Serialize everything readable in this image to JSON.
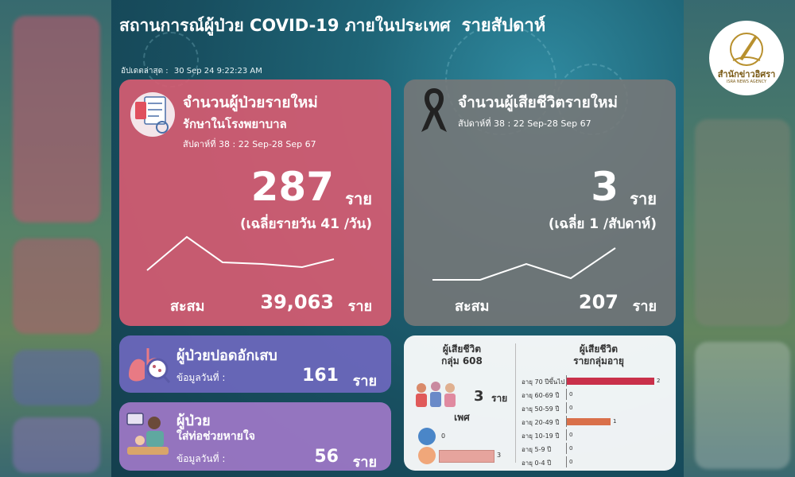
{
  "header": {
    "title": "สถานการณ์ผู้ป่วย COVID-19 ภายในประเทศ",
    "title_suffix": "รายสัปดาห์",
    "updated_label": "อัปเดตล่าสุด :",
    "updated_value": "30 Sep 24 9:22:23 AM"
  },
  "new_cases": {
    "title": "จำนวนผู้ป่วยรายใหม่",
    "subtitle": "รักษาในโรงพยาบาล",
    "week": "สัปดาห์ที่ 38 : 22 Sep-28 Sep 67",
    "value": "287",
    "unit": "ราย",
    "average": "(เฉลี่ยรายวัน 41 /วัน)",
    "cumulative_label": "สะสม",
    "cumulative_value": "39,063",
    "cumulative_unit": "ราย"
  },
  "new_deaths": {
    "title": "จำนวนผู้เสียชีวิตรายใหม่",
    "week": "สัปดาห์ที่ 38 : 22 Sep-28 Sep 67",
    "value": "3",
    "unit": "ราย",
    "average": "(เฉลี่ย 1 /สัปดาห์)",
    "cumulative_label": "สะสม",
    "cumulative_value": "207",
    "cumulative_unit": "ราย"
  },
  "pneumonia": {
    "title": "ผู้ป่วยปอดอักเสบ",
    "date_label": "ข้อมูลวันที่ :",
    "value": "161",
    "unit": "ราย"
  },
  "ventilator": {
    "title": "ผู้ป่วย",
    "subtitle": "ใส่ท่อช่วยหายใจ",
    "date_label": "ข้อมูลวันที่ :",
    "value": "56",
    "unit": "ราย"
  },
  "deaths_breakdown": {
    "group_title_1": "ผู้เสียชีวิต",
    "group_title_2": "กลุ่ม 608",
    "group_value": "3",
    "group_unit": "ราย",
    "gender_title": "เพศ",
    "gender": [
      {
        "value": 0,
        "label": "0",
        "color": "#4a86c8"
      },
      {
        "value": 3,
        "label": "3",
        "color": "#e6a49d"
      }
    ],
    "age_title_1": "ผู้เสียชีวิต",
    "age_title_2": "รายกลุ่มอายุ",
    "age_groups": [
      {
        "label": "อายุ 70 ปีขึ้นไป",
        "value": 2,
        "value_label": "2",
        "color": "#c9304a"
      },
      {
        "label": "อายุ 60-69 ปี",
        "value": 0,
        "value_label": "0",
        "color": "#c9304a"
      },
      {
        "label": "อายุ 50-59 ปี",
        "value": 0,
        "value_label": "0",
        "color": "#c9304a"
      },
      {
        "label": "อายุ 20-49 ปี",
        "value": 1,
        "value_label": "1",
        "color": "#d9704a"
      },
      {
        "label": "อายุ 10-19 ปี",
        "value": 0,
        "value_label": "0",
        "color": "#c9304a"
      },
      {
        "label": "อายุ 5-9 ปี",
        "value": 0,
        "value_label": "0",
        "color": "#c9304a"
      },
      {
        "label": "อายุ 0-4 ปี",
        "value": 0,
        "value_label": "0",
        "color": "#c9304a"
      }
    ]
  },
  "logo": {
    "name_th": "สำนักข่าวอิศรา",
    "name_en": "ISRA NEWS AGENCY"
  },
  "colors": {
    "new_cases_card": "#d65c72",
    "deaths_card": "#787878",
    "pneumonia_card": "#6e68be",
    "ventilator_card": "#a078c8"
  }
}
